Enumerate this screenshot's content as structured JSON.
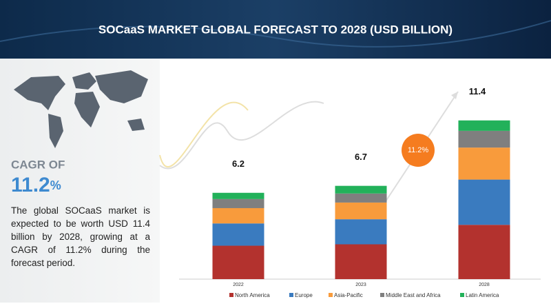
{
  "chart_data": {
    "type": "bar",
    "stacked": true,
    "title": "SOCaaS MARKET GLOBAL FORECAST TO 2028 (USD BILLION)",
    "categories": [
      "2022",
      "2023",
      "2028"
    ],
    "totals": [
      6.2,
      6.7,
      11.4
    ],
    "series": [
      {
        "name": "North America",
        "color": "#b3322e",
        "values": [
          2.4,
          2.5,
          3.9
        ]
      },
      {
        "name": "Europe",
        "color": "#3a7bbf",
        "values": [
          1.6,
          1.8,
          3.25
        ]
      },
      {
        "name": "Asia-Pacific",
        "color": "#f89b3c",
        "values": [
          1.1,
          1.2,
          2.3
        ]
      },
      {
        "name": "Middle East and Africa",
        "color": "#7f7f7f",
        "values": [
          0.65,
          0.65,
          1.2
        ]
      },
      {
        "name": "Latin America",
        "color": "#22b15a",
        "values": [
          0.45,
          0.55,
          0.75
        ]
      }
    ],
    "annotation": "11.2%",
    "legend": "bottom"
  },
  "panel": {
    "cagr_label": "CAGR OF",
    "cagr_value": "11.2",
    "cagr_unit": "%",
    "description": "The global SOCaaS market is expected to be worth USD 11.4 billion by 2028, growing at a CAGR of 11.2% during the forecast period."
  }
}
